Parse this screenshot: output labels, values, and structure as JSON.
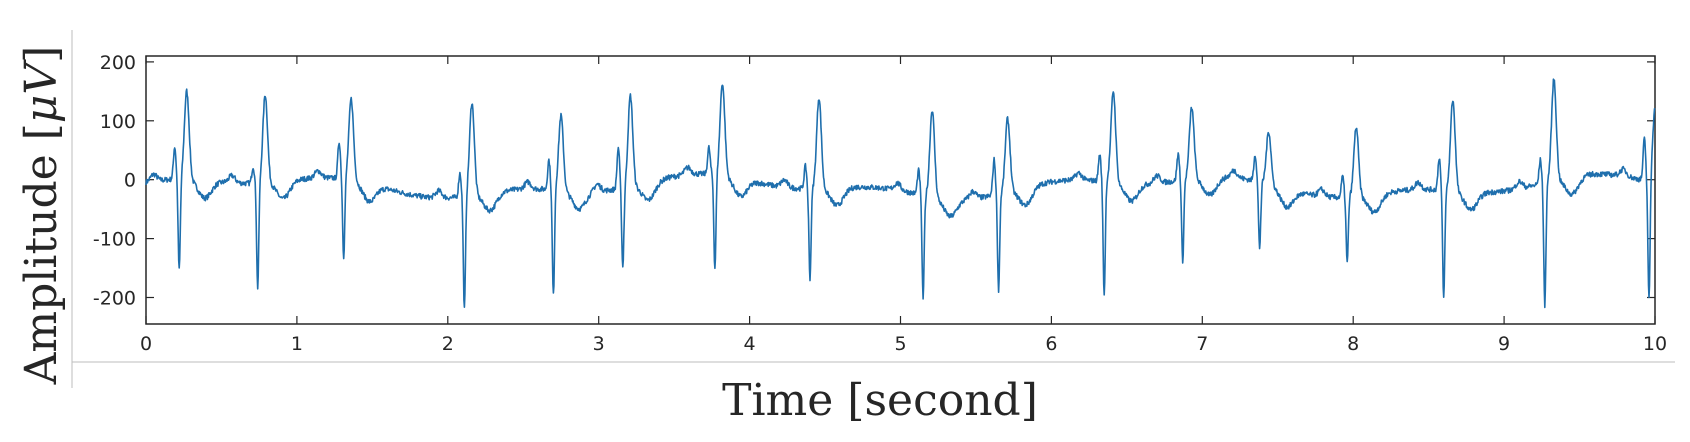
{
  "chart_data": {
    "type": "line",
    "title": "",
    "xlabel": "Time [second]",
    "ylabel_text": "Amplitude [",
    "ylabel_unit": "μV",
    "ylabel_close": "]",
    "xlim": [
      0,
      10
    ],
    "ylim": [
      -245,
      210
    ],
    "xticks": [
      0,
      1,
      2,
      3,
      4,
      5,
      6,
      7,
      8,
      9,
      10
    ],
    "xtick_labels": [
      "0",
      "1",
      "2",
      "3",
      "4",
      "5",
      "6",
      "7",
      "8",
      "9",
      "10"
    ],
    "yticks": [
      -200,
      -100,
      0,
      100,
      200
    ],
    "ytick_labels": [
      "-200",
      "-100",
      "0",
      "100",
      "200"
    ],
    "grid": false,
    "line_color": "#1f6fad",
    "beats": [
      {
        "q": 0.19,
        "qv": 55,
        "s": 0.22,
        "sv": -155,
        "p": 0.27,
        "pv": 150
      },
      {
        "q": 0.71,
        "qv": 28,
        "s": 0.74,
        "sv": -178,
        "p": 0.79,
        "pv": 150
      },
      {
        "q": 1.28,
        "qv": 62,
        "s": 1.31,
        "sv": -132,
        "p": 1.36,
        "pv": 138
      },
      {
        "q": 2.08,
        "qv": 40,
        "s": 2.11,
        "sv": -192,
        "p": 2.16,
        "pv": 158
      },
      {
        "q": 2.67,
        "qv": 50,
        "s": 2.7,
        "sv": -180,
        "p": 2.75,
        "pv": 127
      },
      {
        "q": 3.13,
        "qv": 70,
        "s": 3.16,
        "sv": -135,
        "p": 3.21,
        "pv": 155
      },
      {
        "q": 3.73,
        "qv": 45,
        "s": 3.77,
        "sv": -160,
        "p": 3.82,
        "pv": 157
      },
      {
        "q": 4.37,
        "qv": 38,
        "s": 4.4,
        "sv": -152,
        "p": 4.46,
        "pv": 155
      },
      {
        "q": 5.12,
        "qv": 40,
        "s": 5.15,
        "sv": -175,
        "p": 5.21,
        "pv": 148
      },
      {
        "q": 5.62,
        "qv": 60,
        "s": 5.65,
        "sv": -162,
        "p": 5.71,
        "pv": 125
      },
      {
        "q": 6.32,
        "qv": 45,
        "s": 6.35,
        "sv": -192,
        "p": 6.41,
        "pv": 155
      },
      {
        "q": 6.84,
        "qv": 45,
        "s": 6.87,
        "sv": -137,
        "p": 6.93,
        "pv": 122
      },
      {
        "q": 7.35,
        "qv": 45,
        "s": 7.38,
        "sv": -112,
        "p": 7.44,
        "pv": 90
      },
      {
        "q": 7.93,
        "qv": 35,
        "s": 7.96,
        "sv": -112,
        "p": 8.02,
        "pv": 118
      },
      {
        "q": 8.57,
        "qv": 55,
        "s": 8.6,
        "sv": -183,
        "p": 8.66,
        "pv": 155
      },
      {
        "q": 9.24,
        "qv": 40,
        "s": 9.27,
        "sv": -208,
        "p": 9.33,
        "pv": 172
      },
      {
        "q": 9.93,
        "qv": 70,
        "s": 9.96,
        "sv": -205,
        "p": 10.0,
        "pv": 125
      }
    ]
  }
}
